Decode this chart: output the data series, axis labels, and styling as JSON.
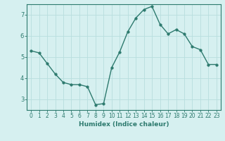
{
  "x": [
    0,
    1,
    2,
    3,
    4,
    5,
    6,
    7,
    8,
    9,
    10,
    11,
    12,
    13,
    14,
    15,
    16,
    17,
    18,
    19,
    20,
    21,
    22,
    23
  ],
  "y": [
    5.3,
    5.2,
    4.7,
    4.2,
    3.8,
    3.7,
    3.7,
    3.6,
    2.75,
    2.8,
    4.5,
    5.25,
    6.2,
    6.85,
    7.25,
    7.4,
    6.55,
    6.1,
    6.3,
    6.1,
    5.5,
    5.35,
    4.65,
    4.65
  ],
  "xlabel": "Humidex (Indice chaleur)",
  "ylim": [
    2.5,
    7.5
  ],
  "xlim": [
    -0.5,
    23.5
  ],
  "yticks": [
    3,
    4,
    5,
    6,
    7
  ],
  "xticks": [
    0,
    1,
    2,
    3,
    4,
    5,
    6,
    7,
    8,
    9,
    10,
    11,
    12,
    13,
    14,
    15,
    16,
    17,
    18,
    19,
    20,
    21,
    22,
    23
  ],
  "line_color": "#2d7a6e",
  "marker_color": "#2d7a6e",
  "bg_color": "#d6f0f0",
  "grid_color": "#b8dede",
  "axis_color": "#2d7a6e",
  "label_color": "#2d7a6e",
  "xlabel_fontsize": 6.5,
  "tick_fontsize": 5.5
}
